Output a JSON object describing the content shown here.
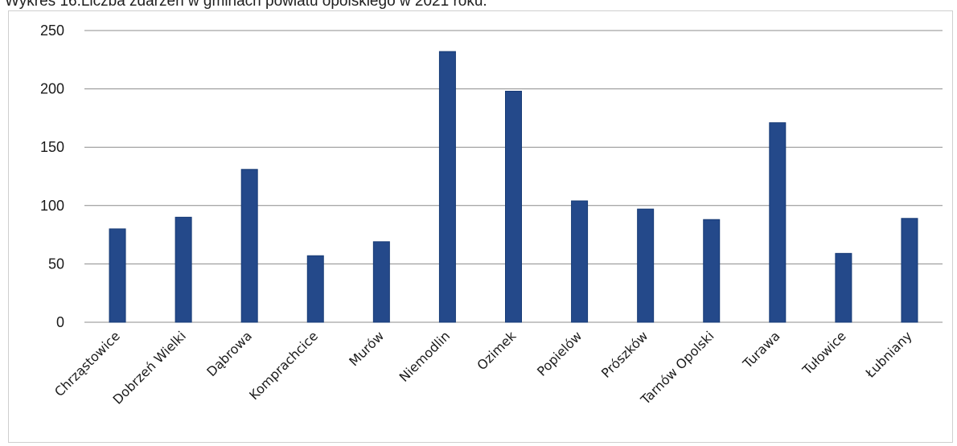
{
  "caption": "Wykres 16.Liczba zdarzeń w gminach powiatu opolskiego w 2021 roku.",
  "chart_data": {
    "type": "bar",
    "title": "",
    "xlabel": "",
    "ylabel": "",
    "ylim": [
      0,
      250
    ],
    "yticks": [
      0,
      50,
      100,
      150,
      200,
      250
    ],
    "grid": true,
    "legend": "none",
    "bar_color": "#24498a",
    "categories": [
      "Chrząstowice",
      "Dobrzeń Wielki",
      "Dąbrowa",
      "Komprachcice",
      "Murów",
      "Niemodlin",
      "Ozimek",
      "Popielów",
      "Prószków",
      "Tarnów Opolski",
      "Turawa",
      "Tułowice",
      "Łubniany"
    ],
    "values": [
      80,
      90,
      131,
      57,
      69,
      232,
      198,
      104,
      97,
      88,
      171,
      59,
      89
    ]
  }
}
